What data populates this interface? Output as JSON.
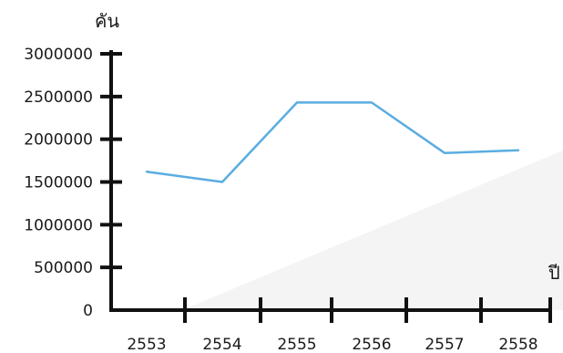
{
  "chart_data": {
    "type": "line",
    "ylabel": "คัน",
    "xlabel": "ปี",
    "categories": [
      "2553",
      "2554",
      "2555",
      "2556",
      "2557",
      "2558"
    ],
    "values": [
      1620000,
      1500000,
      2430000,
      2430000,
      1840000,
      1870000
    ],
    "yticks": [
      0,
      500000,
      1000000,
      1500000,
      2000000,
      2500000,
      3000000
    ],
    "ylim": [
      0,
      3000000
    ],
    "line_color": "#5aade0",
    "grid": false,
    "legend": "none"
  }
}
